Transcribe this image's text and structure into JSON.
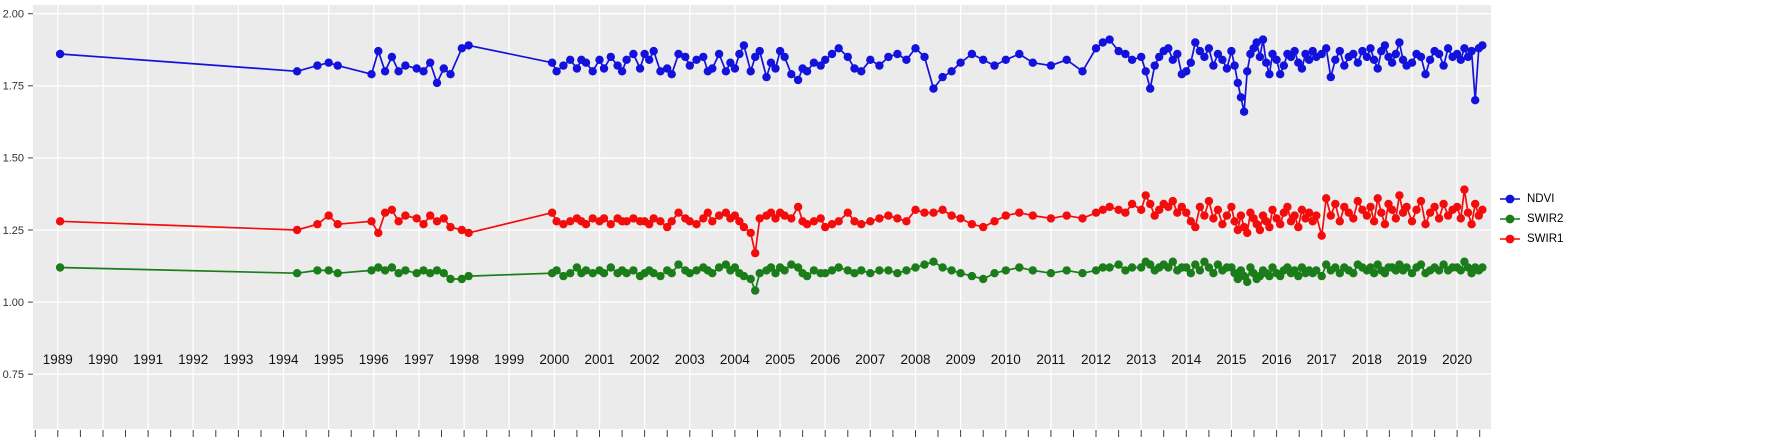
{
  "figure": {
    "panel_background": "#EBEBEB",
    "grid_color": "#FFFFFF",
    "outer_background": "#FFFFFF"
  },
  "y_axis": {
    "ticks": [
      "2.00",
      "1.75",
      "1.50",
      "1.25",
      "1.00",
      "0.75"
    ],
    "values": [
      2.0,
      1.75,
      1.5,
      1.25,
      1.0,
      0.75
    ]
  },
  "x_axis": {
    "years": [
      "1989",
      "1990",
      "1991",
      "1992",
      "1993",
      "1994",
      "1995",
      "1996",
      "1997",
      "1998",
      "1999",
      "2000",
      "2001",
      "2002",
      "2003",
      "2004",
      "2005",
      "2006",
      "2007",
      "2008",
      "2009",
      "2010",
      "2011",
      "2012",
      "2013",
      "2014",
      "2015",
      "2016",
      "2017",
      "2018",
      "2019",
      "2020"
    ]
  },
  "legend": {
    "items": [
      {
        "label": "NDVI",
        "color": "#1212DC"
      },
      {
        "label": "SWIR2",
        "color": "#1A7D1A"
      },
      {
        "label": "SWIR1",
        "color": "#F40B0B"
      }
    ]
  },
  "chart_data": {
    "type": "line",
    "title": "",
    "xlabel": "",
    "ylabel": "",
    "xlim": [
      1988.45,
      2020.75
    ],
    "ylim": [
      0.56,
      2.03
    ],
    "grid": true,
    "legend_position": "right",
    "x": [
      1989.05,
      1994.3,
      1994.75,
      1995.0,
      1995.2,
      1995.95,
      1996.1,
      1996.25,
      1996.4,
      1996.55,
      1996.7,
      1996.95,
      1997.1,
      1997.25,
      1997.4,
      1997.55,
      1997.7,
      1997.95,
      1998.1,
      1999.95,
      2000.05,
      2000.2,
      2000.35,
      2000.5,
      2000.6,
      2000.7,
      2000.85,
      2001.0,
      2001.1,
      2001.25,
      2001.4,
      2001.5,
      2001.6,
      2001.75,
      2001.9,
      2002.0,
      2002.1,
      2002.2,
      2002.35,
      2002.5,
      2002.6,
      2002.75,
      2002.9,
      2003.0,
      2003.15,
      2003.3,
      2003.4,
      2003.5,
      2003.65,
      2003.8,
      2003.9,
      2004.0,
      2004.1,
      2004.2,
      2004.35,
      2004.45,
      2004.55,
      2004.7,
      2004.8,
      2004.9,
      2005.0,
      2005.1,
      2005.25,
      2005.4,
      2005.5,
      2005.6,
      2005.75,
      2005.9,
      2006.0,
      2006.15,
      2006.3,
      2006.5,
      2006.65,
      2006.8,
      2007.0,
      2007.2,
      2007.4,
      2007.6,
      2007.8,
      2008.0,
      2008.2,
      2008.4,
      2008.6,
      2008.8,
      2009.0,
      2009.25,
      2009.5,
      2009.75,
      2010.0,
      2010.3,
      2010.6,
      2011.0,
      2011.35,
      2011.7,
      2012.0,
      2012.15,
      2012.3,
      2012.5,
      2012.65,
      2012.8,
      2013.0,
      2013.1,
      2013.2,
      2013.3,
      2013.4,
      2013.5,
      2013.6,
      2013.7,
      2013.8,
      2013.9,
      2014.0,
      2014.1,
      2014.2,
      2014.3,
      2014.4,
      2014.5,
      2014.6,
      2014.7,
      2014.8,
      2014.9,
      2015.0,
      2015.07,
      2015.14,
      2015.21,
      2015.28,
      2015.35,
      2015.42,
      2015.49,
      2015.56,
      2015.63,
      2015.7,
      2015.77,
      2015.84,
      2015.91,
      2016.0,
      2016.08,
      2016.16,
      2016.24,
      2016.32,
      2016.4,
      2016.48,
      2016.56,
      2016.64,
      2016.72,
      2016.8,
      2016.88,
      2017.0,
      2017.1,
      2017.2,
      2017.3,
      2017.4,
      2017.5,
      2017.6,
      2017.7,
      2017.8,
      2017.9,
      2018.0,
      2018.08,
      2018.16,
      2018.24,
      2018.32,
      2018.4,
      2018.48,
      2018.56,
      2018.64,
      2018.72,
      2018.8,
      2018.88,
      2019.0,
      2019.1,
      2019.2,
      2019.3,
      2019.4,
      2019.5,
      2019.6,
      2019.7,
      2019.8,
      2019.9,
      2020.0,
      2020.08,
      2020.16,
      2020.24,
      2020.32,
      2020.4,
      2020.48,
      2020.56
    ],
    "series": [
      {
        "name": "NDVI",
        "color": "#1212DC",
        "values": [
          1.86,
          1.8,
          1.82,
          1.83,
          1.82,
          1.79,
          1.87,
          1.8,
          1.85,
          1.8,
          1.82,
          1.81,
          1.8,
          1.83,
          1.76,
          1.81,
          1.79,
          1.88,
          1.89,
          1.83,
          1.8,
          1.82,
          1.84,
          1.81,
          1.84,
          1.83,
          1.8,
          1.84,
          1.81,
          1.85,
          1.82,
          1.8,
          1.84,
          1.86,
          1.81,
          1.86,
          1.84,
          1.87,
          1.8,
          1.81,
          1.79,
          1.86,
          1.85,
          1.82,
          1.84,
          1.85,
          1.8,
          1.81,
          1.86,
          1.8,
          1.83,
          1.81,
          1.86,
          1.89,
          1.8,
          1.85,
          1.87,
          1.78,
          1.83,
          1.81,
          1.87,
          1.85,
          1.79,
          1.77,
          1.81,
          1.8,
          1.83,
          1.82,
          1.84,
          1.86,
          1.88,
          1.85,
          1.81,
          1.8,
          1.84,
          1.82,
          1.85,
          1.86,
          1.84,
          1.88,
          1.85,
          1.74,
          1.78,
          1.8,
          1.83,
          1.86,
          1.84,
          1.82,
          1.84,
          1.86,
          1.83,
          1.82,
          1.84,
          1.8,
          1.88,
          1.9,
          1.91,
          1.87,
          1.86,
          1.84,
          1.85,
          1.8,
          1.74,
          1.82,
          1.85,
          1.87,
          1.88,
          1.84,
          1.86,
          1.79,
          1.8,
          1.83,
          1.9,
          1.87,
          1.85,
          1.88,
          1.82,
          1.86,
          1.84,
          1.81,
          1.87,
          1.82,
          1.76,
          1.71,
          1.66,
          1.8,
          1.86,
          1.88,
          1.9,
          1.85,
          1.91,
          1.83,
          1.79,
          1.86,
          1.84,
          1.79,
          1.82,
          1.86,
          1.85,
          1.87,
          1.83,
          1.81,
          1.86,
          1.84,
          1.87,
          1.85,
          1.86,
          1.88,
          1.78,
          1.84,
          1.87,
          1.82,
          1.85,
          1.86,
          1.83,
          1.87,
          1.85,
          1.88,
          1.84,
          1.81,
          1.87,
          1.89,
          1.85,
          1.83,
          1.86,
          1.9,
          1.84,
          1.82,
          1.83,
          1.86,
          1.85,
          1.79,
          1.84,
          1.87,
          1.86,
          1.82,
          1.88,
          1.85,
          1.86,
          1.84,
          1.88,
          1.85,
          1.87,
          1.7,
          1.88,
          1.89
        ]
      },
      {
        "name": "SWIR2",
        "color": "#1A7D1A",
        "values": [
          1.12,
          1.1,
          1.11,
          1.11,
          1.1,
          1.11,
          1.12,
          1.11,
          1.12,
          1.1,
          1.11,
          1.1,
          1.11,
          1.1,
          1.11,
          1.1,
          1.08,
          1.08,
          1.09,
          1.1,
          1.11,
          1.09,
          1.1,
          1.12,
          1.1,
          1.11,
          1.1,
          1.11,
          1.1,
          1.12,
          1.1,
          1.11,
          1.1,
          1.11,
          1.09,
          1.1,
          1.11,
          1.1,
          1.09,
          1.11,
          1.1,
          1.13,
          1.11,
          1.1,
          1.11,
          1.12,
          1.11,
          1.1,
          1.12,
          1.13,
          1.11,
          1.12,
          1.1,
          1.09,
          1.08,
          1.04,
          1.1,
          1.11,
          1.12,
          1.1,
          1.12,
          1.11,
          1.13,
          1.12,
          1.1,
          1.09,
          1.11,
          1.1,
          1.1,
          1.11,
          1.12,
          1.11,
          1.1,
          1.11,
          1.1,
          1.11,
          1.11,
          1.1,
          1.11,
          1.12,
          1.13,
          1.14,
          1.12,
          1.11,
          1.1,
          1.09,
          1.08,
          1.1,
          1.11,
          1.12,
          1.11,
          1.1,
          1.11,
          1.1,
          1.11,
          1.12,
          1.12,
          1.13,
          1.11,
          1.12,
          1.12,
          1.14,
          1.13,
          1.11,
          1.12,
          1.13,
          1.12,
          1.14,
          1.11,
          1.12,
          1.12,
          1.1,
          1.13,
          1.11,
          1.14,
          1.12,
          1.1,
          1.13,
          1.11,
          1.12,
          1.12,
          1.1,
          1.08,
          1.11,
          1.09,
          1.07,
          1.12,
          1.1,
          1.08,
          1.09,
          1.11,
          1.1,
          1.09,
          1.12,
          1.1,
          1.09,
          1.11,
          1.12,
          1.1,
          1.11,
          1.09,
          1.12,
          1.1,
          1.11,
          1.1,
          1.11,
          1.09,
          1.13,
          1.11,
          1.12,
          1.1,
          1.12,
          1.11,
          1.1,
          1.13,
          1.12,
          1.11,
          1.12,
          1.1,
          1.13,
          1.11,
          1.1,
          1.12,
          1.12,
          1.11,
          1.13,
          1.11,
          1.12,
          1.1,
          1.12,
          1.13,
          1.1,
          1.11,
          1.12,
          1.11,
          1.13,
          1.11,
          1.12,
          1.12,
          1.11,
          1.14,
          1.12,
          1.1,
          1.12,
          1.11,
          1.12
        ]
      },
      {
        "name": "SWIR1",
        "color": "#F40B0B",
        "values": [
          1.28,
          1.25,
          1.27,
          1.3,
          1.27,
          1.28,
          1.24,
          1.31,
          1.32,
          1.28,
          1.3,
          1.29,
          1.27,
          1.3,
          1.28,
          1.29,
          1.26,
          1.25,
          1.24,
          1.31,
          1.28,
          1.27,
          1.28,
          1.29,
          1.28,
          1.27,
          1.29,
          1.28,
          1.29,
          1.27,
          1.29,
          1.28,
          1.28,
          1.29,
          1.28,
          1.28,
          1.27,
          1.29,
          1.28,
          1.26,
          1.28,
          1.31,
          1.29,
          1.28,
          1.27,
          1.29,
          1.31,
          1.28,
          1.3,
          1.31,
          1.29,
          1.3,
          1.28,
          1.26,
          1.24,
          1.17,
          1.29,
          1.3,
          1.31,
          1.29,
          1.31,
          1.3,
          1.29,
          1.33,
          1.28,
          1.27,
          1.28,
          1.29,
          1.26,
          1.27,
          1.28,
          1.31,
          1.28,
          1.27,
          1.28,
          1.29,
          1.3,
          1.29,
          1.28,
          1.32,
          1.31,
          1.31,
          1.32,
          1.3,
          1.29,
          1.27,
          1.26,
          1.28,
          1.3,
          1.31,
          1.3,
          1.29,
          1.3,
          1.29,
          1.31,
          1.32,
          1.33,
          1.32,
          1.31,
          1.34,
          1.32,
          1.37,
          1.34,
          1.3,
          1.32,
          1.34,
          1.33,
          1.35,
          1.31,
          1.33,
          1.31,
          1.28,
          1.26,
          1.33,
          1.3,
          1.35,
          1.29,
          1.32,
          1.27,
          1.3,
          1.33,
          1.28,
          1.25,
          1.3,
          1.26,
          1.24,
          1.31,
          1.29,
          1.27,
          1.25,
          1.3,
          1.28,
          1.26,
          1.32,
          1.29,
          1.27,
          1.31,
          1.33,
          1.28,
          1.3,
          1.26,
          1.32,
          1.29,
          1.31,
          1.28,
          1.3,
          1.23,
          1.36,
          1.3,
          1.34,
          1.28,
          1.33,
          1.31,
          1.29,
          1.35,
          1.32,
          1.3,
          1.33,
          1.28,
          1.36,
          1.31,
          1.27,
          1.34,
          1.32,
          1.29,
          1.37,
          1.31,
          1.33,
          1.28,
          1.32,
          1.35,
          1.27,
          1.31,
          1.33,
          1.29,
          1.34,
          1.3,
          1.32,
          1.33,
          1.29,
          1.39,
          1.31,
          1.27,
          1.34,
          1.3,
          1.32
        ]
      }
    ]
  }
}
